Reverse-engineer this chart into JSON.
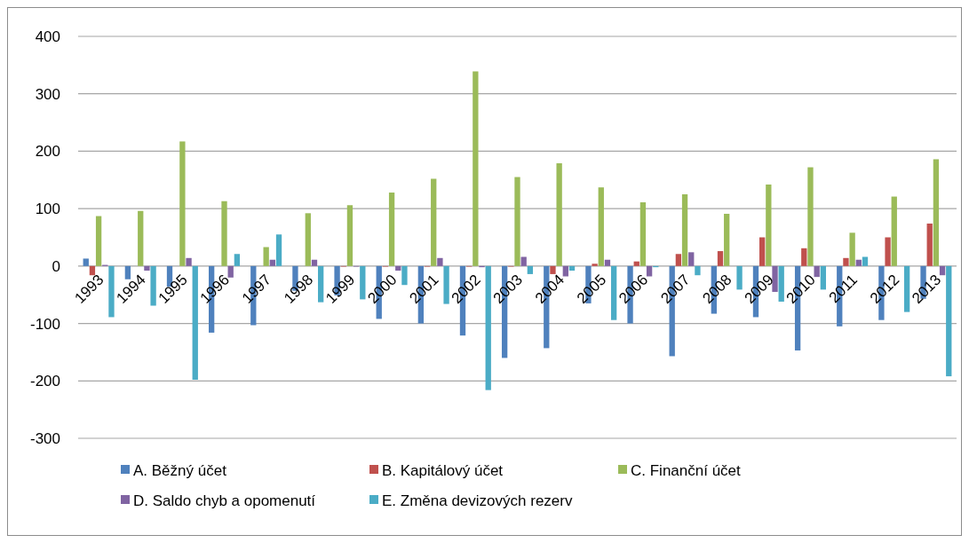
{
  "chart_data": {
    "type": "bar",
    "categories": [
      "1993",
      "1994",
      "1995",
      "1996",
      "1997",
      "1998",
      "1999",
      "2000",
      "2001",
      "2002",
      "2003",
      "2004",
      "2005",
      "2006",
      "2007",
      "2008",
      "2009",
      "2010",
      "2011",
      "2012",
      "2013"
    ],
    "series": [
      {
        "name": "A. Běžný účet",
        "color": "#4f81bd",
        "values": [
          13,
          -23,
          -36,
          -116,
          -103,
          -43,
          -51,
          -92,
          -100,
          -121,
          -160,
          -143,
          -65,
          -100,
          -157,
          -83,
          -89,
          -147,
          -105,
          -94,
          -57
        ]
      },
      {
        "name": "B. Kapitálový účet",
        "color": "#c0504d",
        "values": [
          -16,
          0,
          0,
          0,
          0,
          0,
          -1,
          -1,
          -1,
          -1,
          -1,
          -14,
          4,
          8,
          21,
          26,
          50,
          31,
          14,
          50,
          74
        ]
      },
      {
        "name": "C. Finanční účet",
        "color": "#9bbb59",
        "values": [
          87,
          96,
          217,
          113,
          33,
          92,
          106,
          128,
          152,
          339,
          155,
          179,
          137,
          111,
          125,
          91,
          142,
          172,
          58,
          121,
          186
        ]
      },
      {
        "name": "D. Saldo chyb a opomenutí",
        "color": "#8064a2",
        "values": [
          2,
          -8,
          14,
          -20,
          11,
          11,
          -1,
          -8,
          14,
          -2,
          16,
          -18,
          11,
          -18,
          24,
          0,
          -45,
          -19,
          11,
          0,
          -16
        ]
      },
      {
        "name": "E. Změna devizových rezerv",
        "color": "#4bacc6",
        "values": [
          -89,
          -69,
          -198,
          21,
          55,
          -63,
          -58,
          -33,
          -66,
          -216,
          -14,
          -8,
          -94,
          -2,
          -16,
          -41,
          -62,
          -41,
          16,
          -80,
          -192
        ]
      }
    ],
    "ylim": [
      -300,
      400
    ],
    "yticks": [
      -300,
      -200,
      -100,
      0,
      100,
      200,
      300,
      400
    ],
    "grid": "y",
    "legend": "bottom"
  }
}
